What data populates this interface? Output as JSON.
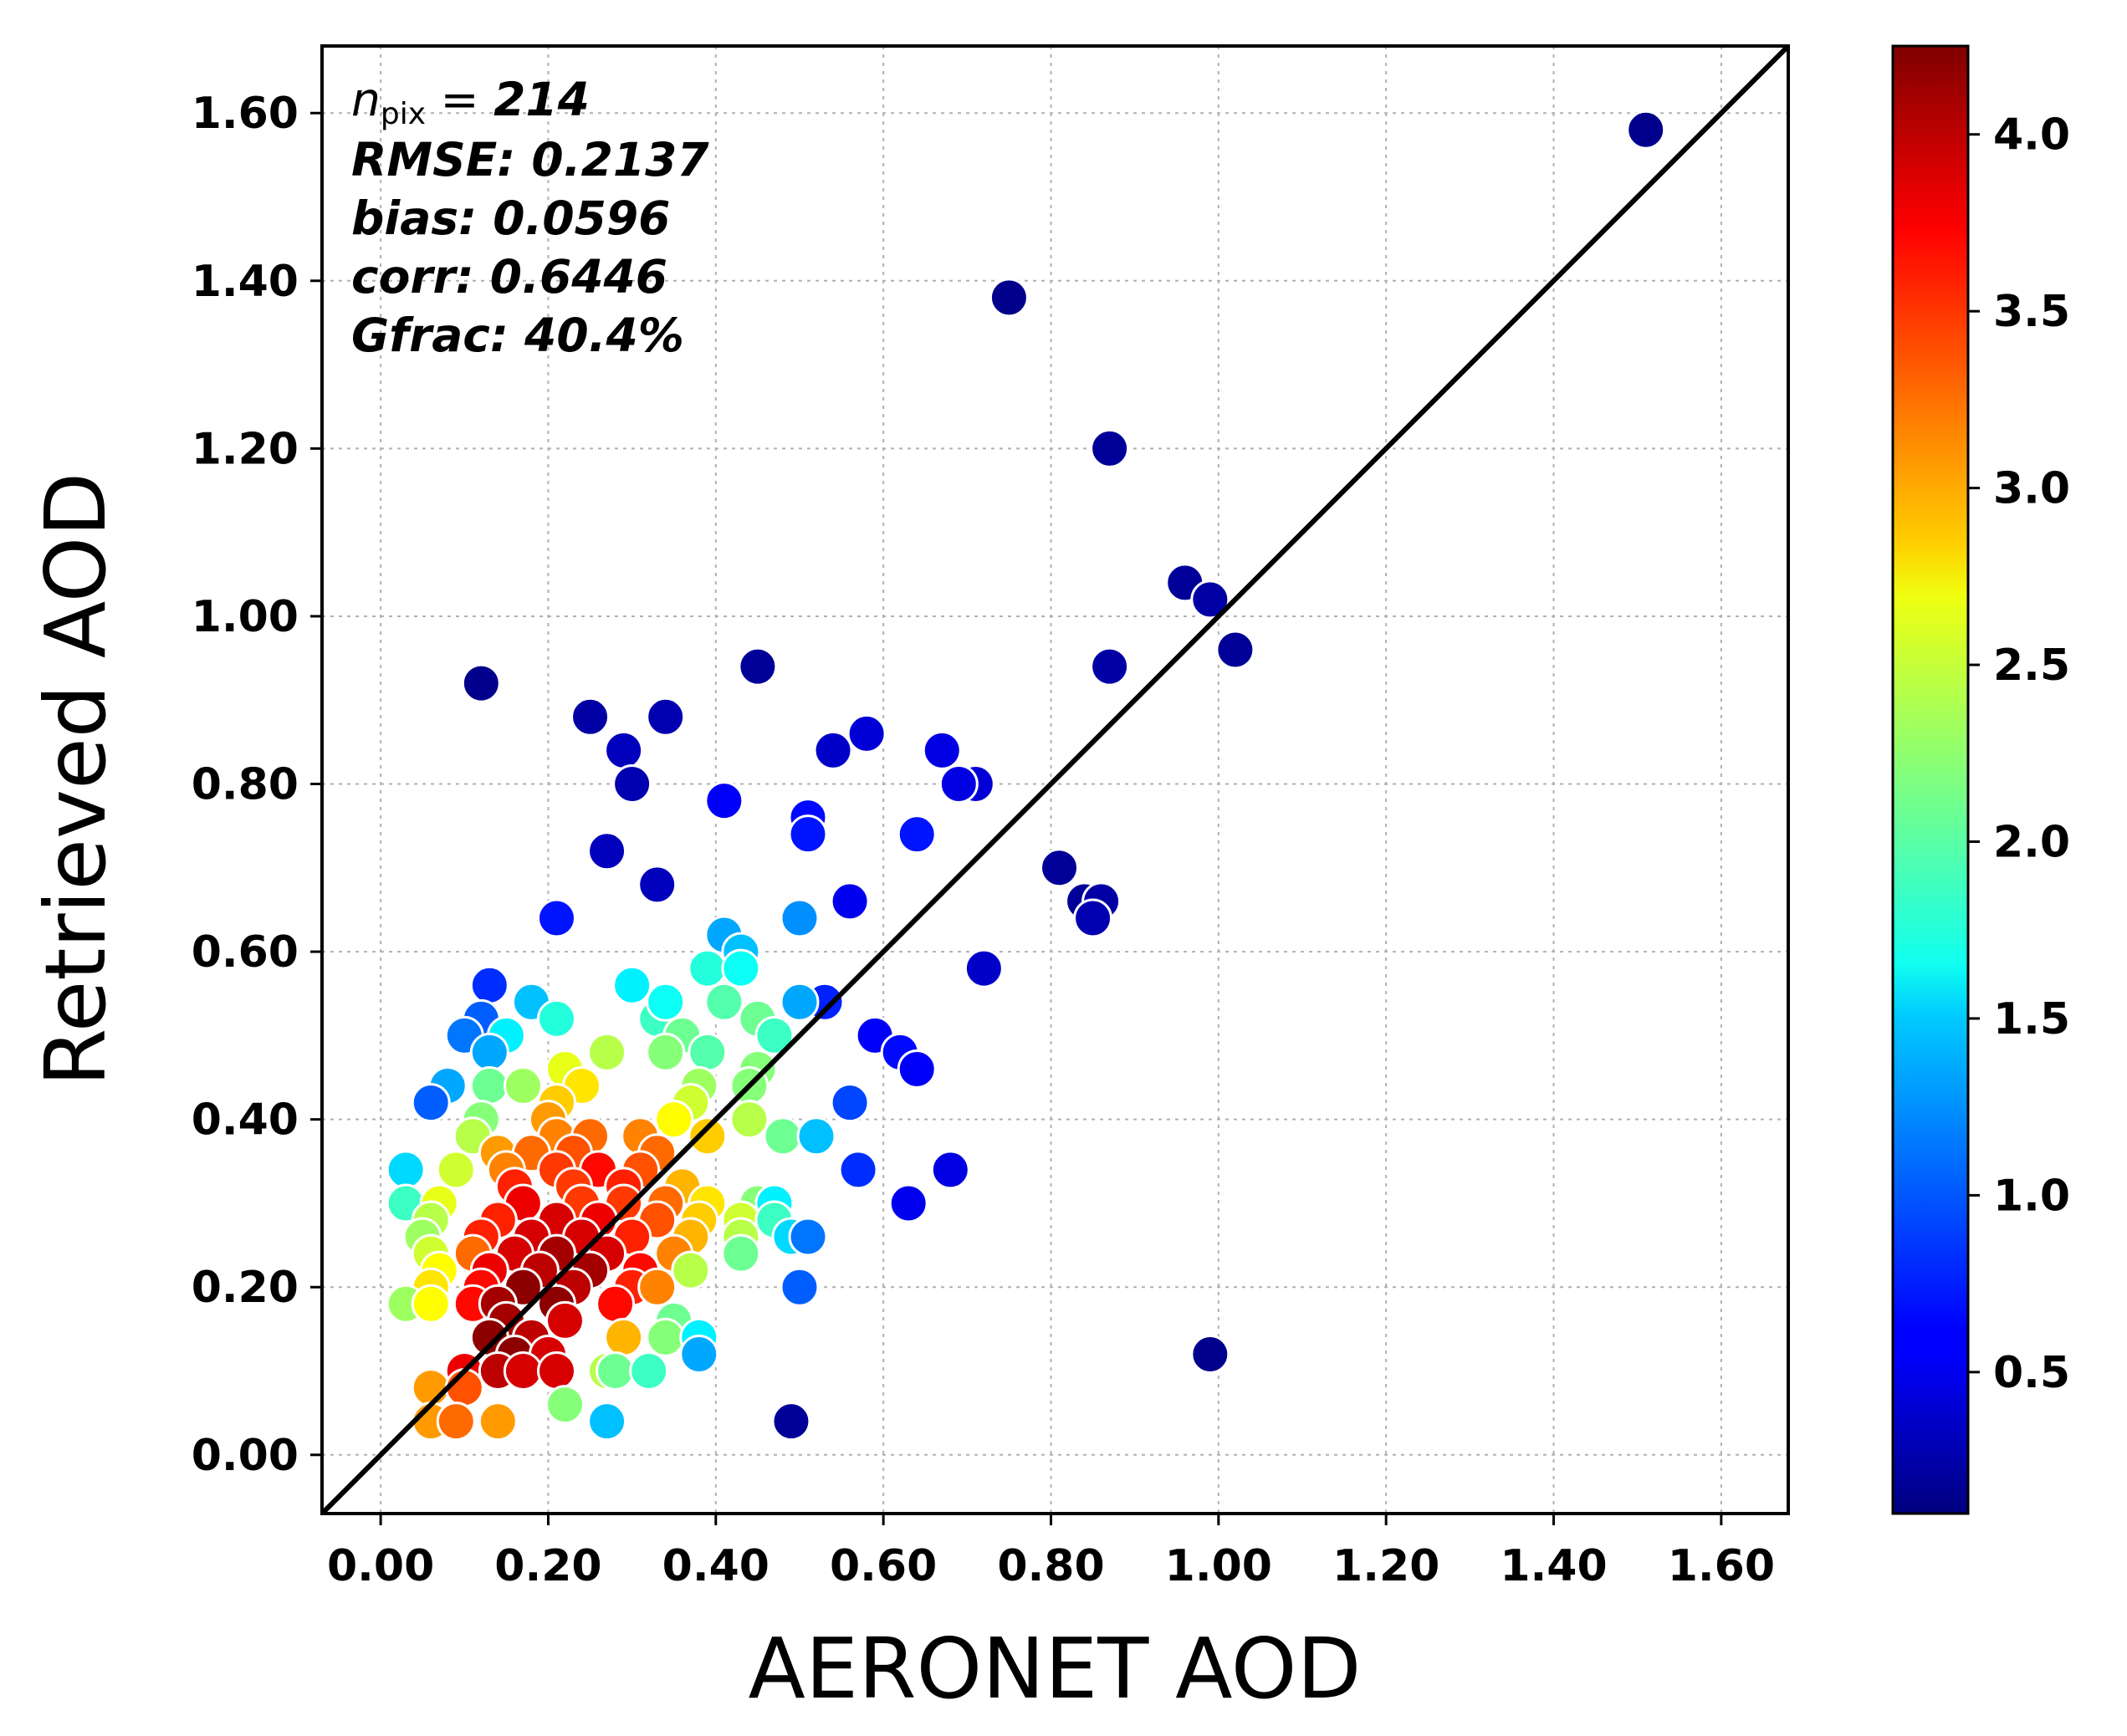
{
  "chart_data": {
    "type": "scatter",
    "title": "",
    "xlabel": "AERONET AOD",
    "ylabel": "Retrieved AOD",
    "xlim": [
      -0.07,
      1.68
    ],
    "ylim": [
      -0.07,
      1.68
    ],
    "xticks": [
      "0.00",
      "0.20",
      "0.40",
      "0.60",
      "0.80",
      "1.00",
      "1.20",
      "1.40",
      "1.60"
    ],
    "yticks": [
      "0.00",
      "0.20",
      "0.40",
      "0.60",
      "0.80",
      "1.00",
      "1.20",
      "1.40",
      "1.60"
    ],
    "grid": true,
    "one_to_one_line": true,
    "stats": {
      "npix_label": "n",
      "npix_sub": "pix",
      "npix_eq": " = ",
      "npix_value": "214",
      "rmse": "RMSE: 0.2137",
      "bias": "bias: 0.0596",
      "corr": "corr: 0.6446",
      "gfrac": "Gfrac: 40.4%"
    },
    "colorbar": {
      "colormap": "jet",
      "range": [
        0.1,
        4.25
      ],
      "ticks": [
        "0.5",
        "1.0",
        "1.5",
        "2.0",
        "2.5",
        "3.0",
        "3.5",
        "4.0"
      ],
      "tick_values": [
        0.5,
        1.0,
        1.5,
        2.0,
        2.5,
        3.0,
        3.5,
        4.0
      ]
    },
    "points": [
      [
        1.51,
        1.58,
        0.15
      ],
      [
        0.75,
        1.38,
        0.15
      ],
      [
        0.87,
        1.2,
        0.2
      ],
      [
        0.96,
        1.04,
        0.2
      ],
      [
        0.99,
        1.02,
        0.25
      ],
      [
        1.02,
        0.96,
        0.2
      ],
      [
        0.12,
        0.92,
        0.15
      ],
      [
        0.45,
        0.94,
        0.2
      ],
      [
        0.87,
        0.94,
        0.25
      ],
      [
        0.25,
        0.88,
        0.25
      ],
      [
        0.34,
        0.88,
        0.3
      ],
      [
        0.29,
        0.84,
        0.35
      ],
      [
        0.3,
        0.8,
        0.3
      ],
      [
        0.54,
        0.84,
        0.4
      ],
      [
        0.58,
        0.86,
        0.45
      ],
      [
        0.67,
        0.84,
        0.5
      ],
      [
        0.71,
        0.8,
        0.45
      ],
      [
        0.69,
        0.8,
        0.5
      ],
      [
        0.41,
        0.78,
        0.6
      ],
      [
        0.51,
        0.76,
        0.65
      ],
      [
        0.51,
        0.74,
        0.7
      ],
      [
        0.64,
        0.74,
        0.7
      ],
      [
        0.27,
        0.72,
        0.35
      ],
      [
        0.33,
        0.68,
        0.35
      ],
      [
        0.81,
        0.7,
        0.2
      ],
      [
        0.84,
        0.66,
        0.2
      ],
      [
        0.86,
        0.66,
        0.25
      ],
      [
        0.85,
        0.64,
        0.3
      ],
      [
        0.56,
        0.66,
        0.55
      ],
      [
        0.21,
        0.64,
        0.7
      ],
      [
        0.5,
        0.64,
        1.2
      ],
      [
        0.41,
        0.62,
        1.3
      ],
      [
        0.43,
        0.6,
        1.4
      ],
      [
        0.72,
        0.58,
        0.4
      ],
      [
        0.13,
        0.56,
        0.8
      ],
      [
        0.3,
        0.56,
        1.6
      ],
      [
        0.53,
        0.54,
        0.75
      ],
      [
        0.5,
        0.54,
        1.3
      ],
      [
        0.18,
        0.54,
        1.4
      ],
      [
        0.39,
        0.58,
        1.8
      ],
      [
        0.43,
        0.58,
        1.7
      ],
      [
        0.12,
        0.52,
        1.0
      ],
      [
        0.21,
        0.52,
        1.8
      ],
      [
        0.33,
        0.52,
        1.9
      ],
      [
        0.34,
        0.54,
        1.7
      ],
      [
        0.41,
        0.54,
        2.0
      ],
      [
        0.45,
        0.52,
        2.1
      ],
      [
        0.1,
        0.5,
        1.1
      ],
      [
        0.59,
        0.5,
        0.6
      ],
      [
        0.47,
        0.5,
        1.9
      ],
      [
        0.15,
        0.5,
        1.6
      ],
      [
        0.62,
        0.48,
        0.65
      ],
      [
        0.64,
        0.46,
        0.6
      ],
      [
        0.36,
        0.5,
        2.1
      ],
      [
        0.13,
        0.48,
        1.3
      ],
      [
        0.27,
        0.48,
        2.4
      ],
      [
        0.34,
        0.48,
        2.2
      ],
      [
        0.39,
        0.48,
        2.0
      ],
      [
        0.45,
        0.46,
        2.2
      ],
      [
        0.22,
        0.46,
        2.6
      ],
      [
        0.08,
        0.44,
        1.3
      ],
      [
        0.13,
        0.44,
        2.1
      ],
      [
        0.17,
        0.44,
        2.3
      ],
      [
        0.24,
        0.44,
        2.8
      ],
      [
        0.38,
        0.44,
        2.3
      ],
      [
        0.44,
        0.44,
        2.2
      ],
      [
        0.06,
        0.42,
        1.0
      ],
      [
        0.56,
        0.42,
        0.9
      ],
      [
        0.21,
        0.42,
        2.9
      ],
      [
        0.37,
        0.42,
        2.5
      ],
      [
        0.12,
        0.4,
        2.2
      ],
      [
        0.2,
        0.4,
        3.1
      ],
      [
        0.35,
        0.4,
        2.7
      ],
      [
        0.44,
        0.4,
        2.4
      ],
      [
        0.48,
        0.38,
        2.1
      ],
      [
        0.52,
        0.38,
        1.4
      ],
      [
        0.11,
        0.38,
        2.4
      ],
      [
        0.21,
        0.38,
        3.2
      ],
      [
        0.25,
        0.38,
        3.3
      ],
      [
        0.31,
        0.38,
        3.2
      ],
      [
        0.39,
        0.38,
        2.9
      ],
      [
        0.14,
        0.36,
        3.1
      ],
      [
        0.18,
        0.36,
        3.3
      ],
      [
        0.23,
        0.36,
        3.4
      ],
      [
        0.33,
        0.36,
        3.3
      ],
      [
        0.15,
        0.34,
        3.2
      ],
      [
        0.21,
        0.34,
        3.5
      ],
      [
        0.26,
        0.34,
        3.7
      ],
      [
        0.31,
        0.34,
        3.4
      ],
      [
        0.03,
        0.34,
        1.5
      ],
      [
        0.09,
        0.34,
        2.5
      ],
      [
        0.57,
        0.34,
        0.8
      ],
      [
        0.68,
        0.34,
        0.5
      ],
      [
        0.16,
        0.32,
        3.6
      ],
      [
        0.23,
        0.32,
        3.5
      ],
      [
        0.29,
        0.32,
        3.6
      ],
      [
        0.36,
        0.32,
        3.0
      ],
      [
        0.03,
        0.3,
        1.9
      ],
      [
        0.07,
        0.3,
        2.6
      ],
      [
        0.17,
        0.3,
        3.8
      ],
      [
        0.24,
        0.3,
        3.5
      ],
      [
        0.29,
        0.3,
        3.5
      ],
      [
        0.34,
        0.3,
        3.3
      ],
      [
        0.39,
        0.3,
        2.8
      ],
      [
        0.45,
        0.3,
        2.2
      ],
      [
        0.47,
        0.3,
        1.6
      ],
      [
        0.63,
        0.3,
        0.55
      ],
      [
        0.06,
        0.28,
        2.4
      ],
      [
        0.14,
        0.28,
        3.6
      ],
      [
        0.21,
        0.28,
        3.9
      ],
      [
        0.26,
        0.28,
        3.8
      ],
      [
        0.33,
        0.28,
        3.4
      ],
      [
        0.38,
        0.28,
        2.9
      ],
      [
        0.43,
        0.28,
        2.5
      ],
      [
        0.47,
        0.28,
        1.9
      ],
      [
        0.49,
        0.26,
        1.5
      ],
      [
        0.51,
        0.26,
        1.1
      ],
      [
        0.05,
        0.26,
        2.3
      ],
      [
        0.12,
        0.26,
        3.6
      ],
      [
        0.18,
        0.26,
        3.9
      ],
      [
        0.24,
        0.26,
        3.9
      ],
      [
        0.3,
        0.26,
        3.6
      ],
      [
        0.37,
        0.26,
        3.0
      ],
      [
        0.43,
        0.26,
        2.4
      ],
      [
        0.06,
        0.24,
        2.5
      ],
      [
        0.11,
        0.24,
        3.3
      ],
      [
        0.16,
        0.24,
        3.9
      ],
      [
        0.21,
        0.24,
        4.1
      ],
      [
        0.27,
        0.24,
        3.9
      ],
      [
        0.35,
        0.24,
        3.2
      ],
      [
        0.43,
        0.24,
        2.1
      ],
      [
        0.07,
        0.22,
        2.7
      ],
      [
        0.13,
        0.22,
        3.8
      ],
      [
        0.19,
        0.22,
        4.0
      ],
      [
        0.25,
        0.22,
        4.1
      ],
      [
        0.31,
        0.22,
        3.7
      ],
      [
        0.37,
        0.22,
        2.4
      ],
      [
        0.06,
        0.2,
        2.8
      ],
      [
        0.12,
        0.2,
        3.7
      ],
      [
        0.17,
        0.2,
        4.2
      ],
      [
        0.23,
        0.2,
        4.0
      ],
      [
        0.3,
        0.2,
        3.6
      ],
      [
        0.33,
        0.2,
        3.2
      ],
      [
        0.5,
        0.2,
        1.0
      ],
      [
        0.03,
        0.18,
        2.3
      ],
      [
        0.06,
        0.18,
        2.7
      ],
      [
        0.11,
        0.18,
        3.7
      ],
      [
        0.14,
        0.18,
        4.1
      ],
      [
        0.21,
        0.18,
        4.2
      ],
      [
        0.28,
        0.18,
        3.7
      ],
      [
        0.15,
        0.16,
        4.1
      ],
      [
        0.22,
        0.16,
        3.9
      ],
      [
        0.35,
        0.16,
        2.1
      ],
      [
        0.13,
        0.14,
        4.2
      ],
      [
        0.18,
        0.14,
        4.0
      ],
      [
        0.29,
        0.14,
        3.0
      ],
      [
        0.34,
        0.14,
        2.2
      ],
      [
        0.38,
        0.14,
        1.6
      ],
      [
        0.16,
        0.12,
        4.2
      ],
      [
        0.2,
        0.12,
        3.9
      ],
      [
        0.38,
        0.12,
        1.3
      ],
      [
        0.99,
        0.12,
        0.15
      ],
      [
        0.1,
        0.1,
        3.8
      ],
      [
        0.14,
        0.1,
        4.0
      ],
      [
        0.17,
        0.1,
        3.9
      ],
      [
        0.21,
        0.1,
        3.9
      ],
      [
        0.27,
        0.1,
        2.4
      ],
      [
        0.28,
        0.1,
        2.1
      ],
      [
        0.32,
        0.1,
        1.9
      ],
      [
        0.06,
        0.08,
        3.1
      ],
      [
        0.1,
        0.08,
        3.4
      ],
      [
        0.22,
        0.06,
        2.2
      ],
      [
        0.06,
        0.04,
        3.1
      ],
      [
        0.09,
        0.04,
        3.3
      ],
      [
        0.14,
        0.04,
        3.1
      ],
      [
        0.27,
        0.04,
        1.4
      ],
      [
        0.49,
        0.04,
        0.2
      ]
    ]
  }
}
